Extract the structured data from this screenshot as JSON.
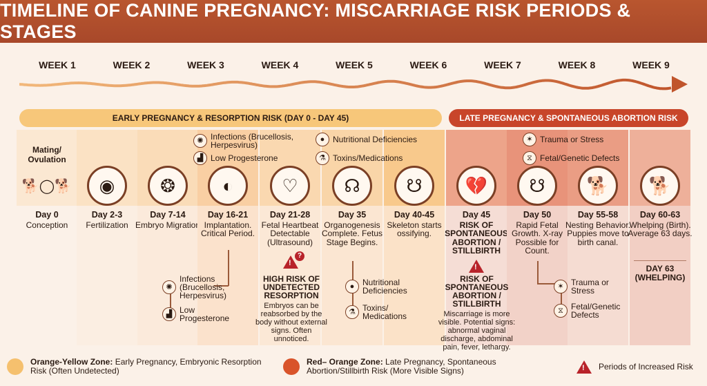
{
  "title": "TIMELINE OF CANINE PREGNANCY: MISCARRIAGE RISK PERIODS & STAGES",
  "weeks": [
    "WEEK 1",
    "WEEK 2",
    "WEEK 3",
    "WEEK 4",
    "WEEK 5",
    "WEEK 6",
    "WEEK 7",
    "WEEK 8",
    "WEEK 9"
  ],
  "phases": {
    "early": "EARLY PREGNANCY & RESORPTION RISK (DAY 0 - DAY 45)",
    "late": "LATE PREGNANCY & SPONTANEOUS ABORTION RISK"
  },
  "colors": {
    "header": "#b5532e",
    "early_zone": "#f5c06e",
    "late_zone": "#d9542a",
    "risk_red": "#b8232a"
  },
  "top_risks_early": [
    {
      "icon": "virus-icon",
      "label": "Infections (Brucellosis, Herpesvirus)"
    },
    {
      "icon": "hormone-chart-icon",
      "label": "Low Progesterone"
    },
    {
      "icon": "apple-icon",
      "label": "Nutritional Deficiencies"
    },
    {
      "icon": "flask-icon",
      "label": "Toxins/Medications"
    }
  ],
  "top_risks_late": [
    {
      "icon": "trauma-icon",
      "label": "Trauma or Stress"
    },
    {
      "icon": "dna-icon",
      "label": "Fetal/Genetic Defects"
    }
  ],
  "mating_label": "Mating/ Ovulation",
  "stages": [
    {
      "icon": "dogs-egg-icon",
      "glyph": "🐕",
      "day": "Day 0",
      "text": "Conception"
    },
    {
      "icon": "egg-cell-icon",
      "glyph": "◉",
      "day": "Day 2-3",
      "text": "Fertilization"
    },
    {
      "icon": "embryo-cells-icon",
      "glyph": "❂",
      "day": "Day 7-14",
      "text": "Embryo Migration"
    },
    {
      "icon": "implantation-icon",
      "glyph": "◐",
      "day": "Day 16-21",
      "text": "Implantation. Critical Period."
    },
    {
      "icon": "heartbeat-icon",
      "glyph": "♡",
      "day": "Day 21-28",
      "text": "Fetal Heartbeat Detectable (Ultrasound)"
    },
    {
      "icon": "embryo-icon",
      "glyph": "☊",
      "day": "Day 35",
      "text": "Organogenesis Complete. Fetus Stage Begins."
    },
    {
      "icon": "fetus-icon",
      "glyph": "☋",
      "day": "Day 40-45",
      "text": "Skeleton starts ossifying."
    },
    {
      "icon": "broken-heart-icon",
      "glyph": "💔",
      "day": "Day 45",
      "text": "RISK OF SPONTANEOUS ABORTION / STILLBIRTH"
    },
    {
      "icon": "fetus-icon",
      "glyph": "☋",
      "day": "Day 50",
      "text": "Rapid Fetal Growth. X-ray Possible for Count."
    },
    {
      "icon": "resting-dog-icon",
      "glyph": "🐕",
      "day": "Day 55-58",
      "text": "Nesting Behavior. Puppies move to birth canal."
    },
    {
      "icon": "dog-puppies-icon",
      "glyph": "🐕",
      "day": "Day 60-63",
      "text": "Whelping (Birth). Average 63 days."
    }
  ],
  "whelping_note": "DAY 63 (WHELPING)",
  "lower_risks": {
    "implant": [
      {
        "icon": "virus-icon",
        "label": "Infections (Brucellosis, Herpesvirus)"
      },
      {
        "icon": "hormone-chart-icon",
        "label": "Low Progesterone"
      }
    ],
    "organo": [
      {
        "icon": "food-icon",
        "label": "Nutritional Deficiencies"
      },
      {
        "icon": "flask-icon",
        "label": "Toxins/ Medications"
      }
    ],
    "growth": [
      {
        "icon": "trauma-icon",
        "label": "Trauma or Stress"
      },
      {
        "icon": "dna-icon",
        "label": "Fetal/Genetic Defects"
      }
    ]
  },
  "alerts": {
    "resorption": {
      "title": "HIGH RISK OF UNDETECTED RESORPTION",
      "text": "Embryos can be reabsorbed by the body without external signs. Often unnoticed."
    },
    "abortion": {
      "title": "RISK OF SPONTANEOUS ABORTION / STILLBIRTH",
      "text": "Miscarriage is more visible. Potential signs: abnormal vaginal discharge, abdominal pain, fever, lethargy."
    }
  },
  "legend": [
    {
      "bold": "Orange-Yellow Zone:",
      "text": " Early Pregnancy, Embryonic Resorption Risk (Often Undetected)"
    },
    {
      "bold": "Red– Orange Zone:",
      "text": " Late Pregnancy, Spontaneous Abortion/Stillbirth Risk (More Visible Signs)"
    },
    {
      "bold": "",
      "text": "Periods of Increased Risk"
    }
  ]
}
